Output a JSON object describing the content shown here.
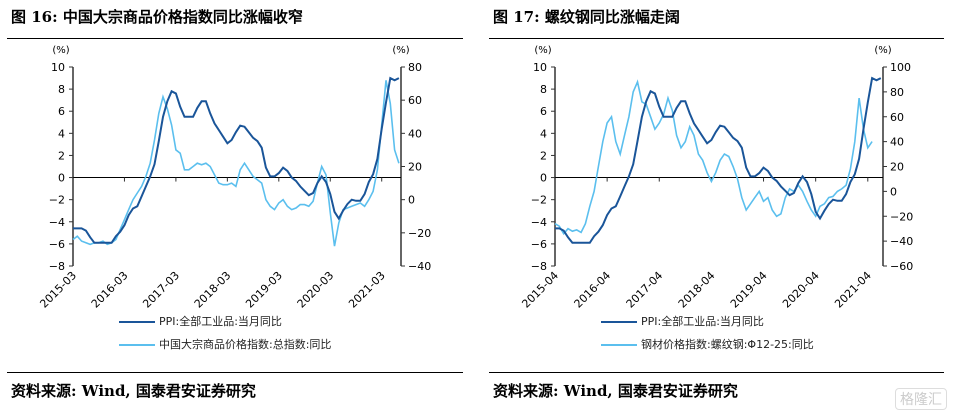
{
  "chart_data": [
    {
      "type": "line",
      "title": "图 16: 中国大宗商品价格指数同比涨幅收窄",
      "left_unit": "(%)",
      "right_unit": "(%)",
      "ylim_left": [
        -8,
        10
      ],
      "yticks_left": [
        "-8",
        "-6",
        "-4",
        "-2",
        "0",
        "2",
        "4",
        "6",
        "8",
        "10"
      ],
      "ylim_right": [
        -40,
        80
      ],
      "yticks_right": [
        "-40",
        "-20",
        "0",
        "20",
        "40",
        "60",
        "80"
      ],
      "xticks": [
        "2015-03",
        "2016-03",
        "2017-03",
        "2018-03",
        "2019-03",
        "2020-03",
        "2021-03"
      ],
      "start": "2015-03",
      "series": [
        {
          "name": "PPI:全部工业品:当月同比",
          "axis": "left",
          "color": "#1a5599",
          "values": [
            -4.6,
            -4.6,
            -4.6,
            -4.8,
            -5.4,
            -5.9,
            -5.9,
            -5.9,
            -5.9,
            -5.9,
            -5.3,
            -4.9,
            -4.3,
            -3.4,
            -2.8,
            -2.6,
            -1.7,
            -0.8,
            0.1,
            1.2,
            3.3,
            5.5,
            6.9,
            7.8,
            7.6,
            6.4,
            5.5,
            5.5,
            5.5,
            6.3,
            6.9,
            6.9,
            5.8,
            4.9,
            4.3,
            3.7,
            3.1,
            3.4,
            4.1,
            4.7,
            4.6,
            4.1,
            3.6,
            3.3,
            2.7,
            0.9,
            0.1,
            0.1,
            0.4,
            0.9,
            0.6,
            0.0,
            -0.3,
            -0.8,
            -1.2,
            -1.6,
            -1.4,
            -0.5,
            0.1,
            -0.4,
            -1.5,
            -3.1,
            -3.7,
            -3.0,
            -2.4,
            -2.0,
            -2.1,
            -2.1,
            -1.5,
            -0.4,
            0.3,
            1.7,
            4.4,
            6.8,
            9.0,
            8.8,
            9.0
          ]
        },
        {
          "name": "中国大宗商品价格指数:总指数:同比",
          "axis": "right",
          "color": "#5bbfee",
          "values": [
            -24,
            -22,
            -25,
            -26,
            -27,
            -26,
            -26,
            -25,
            -27,
            -26,
            -24,
            -18,
            -12,
            -6,
            0,
            4,
            8,
            14,
            22,
            36,
            52,
            62,
            55,
            45,
            30,
            28,
            18,
            18,
            20,
            22,
            21,
            22,
            20,
            15,
            10,
            9,
            9,
            10,
            8,
            18,
            22,
            18,
            14,
            12,
            10,
            0,
            -4,
            -6,
            -2,
            0,
            -4,
            -6,
            -5,
            -3,
            -3,
            -4,
            -1,
            10,
            20,
            15,
            -8,
            -28,
            -14,
            -6,
            -5,
            -4,
            -3,
            -2,
            -4,
            0,
            5,
            18,
            45,
            72,
            58,
            30,
            22
          ]
        }
      ],
      "legend": [
        "PPI:全部工业品:当月同比",
        "中国大宗商品价格指数:总指数:同比"
      ],
      "source": "资料来源: Wind, 国泰君安证券研究"
    },
    {
      "type": "line",
      "title": "图 17: 螺纹钢同比涨幅走阔",
      "left_unit": "(%)",
      "right_unit": "(%)",
      "ylim_left": [
        -8,
        10
      ],
      "yticks_left": [
        "-8",
        "-6",
        "-4",
        "-2",
        "0",
        "2",
        "4",
        "6",
        "8",
        "10"
      ],
      "ylim_right": [
        -60,
        100
      ],
      "yticks_right": [
        "-60",
        "-40",
        "-20",
        "0",
        "20",
        "40",
        "60",
        "80",
        "100"
      ],
      "xticks": [
        "2015-04",
        "2016-04",
        "2017-04",
        "2018-04",
        "2019-04",
        "2020-04",
        "2021-04"
      ],
      "start": "2015-04",
      "series": [
        {
          "name": "PPI:全部工业品:当月同比",
          "axis": "left",
          "color": "#1a5599",
          "values": [
            -4.6,
            -4.6,
            -4.8,
            -5.4,
            -5.9,
            -5.9,
            -5.9,
            -5.9,
            -5.9,
            -5.3,
            -4.9,
            -4.3,
            -3.4,
            -2.8,
            -2.6,
            -1.7,
            -0.8,
            0.1,
            1.2,
            3.3,
            5.5,
            6.9,
            7.8,
            7.6,
            6.4,
            5.5,
            5.5,
            5.5,
            6.3,
            6.9,
            6.9,
            5.8,
            4.9,
            4.3,
            3.7,
            3.1,
            3.4,
            4.1,
            4.7,
            4.6,
            4.1,
            3.6,
            3.3,
            2.7,
            0.9,
            0.1,
            0.1,
            0.4,
            0.9,
            0.6,
            0.0,
            -0.3,
            -0.8,
            -1.2,
            -1.6,
            -1.4,
            -0.5,
            0.1,
            -0.4,
            -1.5,
            -3.1,
            -3.7,
            -3.0,
            -2.4,
            -2.0,
            -2.1,
            -2.1,
            -1.5,
            -0.4,
            0.3,
            1.7,
            4.4,
            6.8,
            9.0,
            8.8,
            9.0
          ]
        },
        {
          "name": "钢材价格指数:螺纹钢:Φ12-25:同比",
          "axis": "right",
          "color": "#5bbfee",
          "values": [
            -26,
            -28,
            -34,
            -30,
            -32,
            -31,
            -33,
            -26,
            -12,
            0,
            20,
            40,
            55,
            60,
            40,
            30,
            45,
            60,
            80,
            88,
            72,
            70,
            60,
            50,
            55,
            62,
            75,
            65,
            45,
            35,
            40,
            52,
            45,
            30,
            25,
            15,
            8,
            15,
            25,
            30,
            28,
            20,
            10,
            -5,
            -15,
            -10,
            -5,
            0,
            -8,
            -5,
            -15,
            -20,
            -18,
            -5,
            2,
            0,
            5,
            0,
            -8,
            -15,
            -20,
            -12,
            -10,
            -5,
            -4,
            0,
            2,
            5,
            18,
            40,
            75,
            50,
            35,
            40
          ]
        }
      ],
      "legend": [
        "PPI:全部工业品:当月同比",
        "钢材价格指数:螺纹钢:Φ12-25:同比"
      ],
      "source": "资料来源: Wind, 国泰君安证券研究"
    }
  ],
  "watermark": "格隆汇"
}
